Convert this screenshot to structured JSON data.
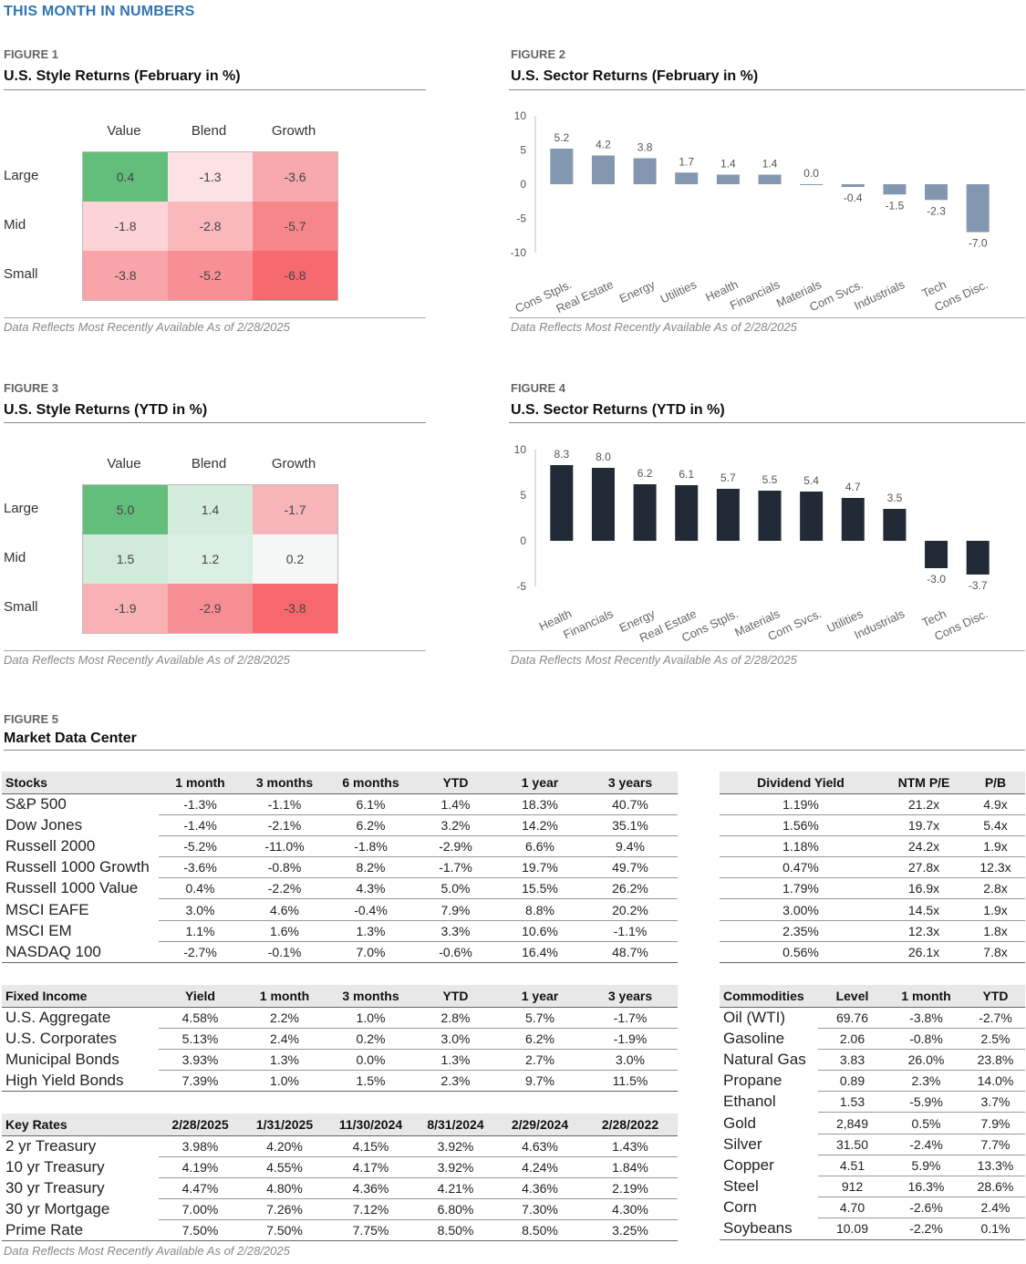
{
  "page_title": "THIS MONTH IN NUMBERS",
  "note": "Data Reflects Most Recently Available As of 2/28/2025",
  "fig1": {
    "label": "FIGURE 1",
    "title": "U.S. Style Returns (February in %)",
    "columns": [
      "Value",
      "Blend",
      "Growth"
    ],
    "rows": [
      "Large",
      "Mid",
      "Small"
    ],
    "cells": [
      [
        "0.4",
        "-1.3",
        "-3.6"
      ],
      [
        "-1.8",
        "-2.8",
        "-5.7"
      ],
      [
        "-3.8",
        "-5.2",
        "-6.8"
      ]
    ],
    "colors": [
      [
        "#63be7b",
        "#fde2e5",
        "#f8a9ae"
      ],
      [
        "#fcd3d7",
        "#fab8bd",
        "#f7868b"
      ],
      [
        "#f8a4a9",
        "#f78f94",
        "#f6696e"
      ]
    ]
  },
  "fig2": {
    "label": "FIGURE 2",
    "title": "U.S. Sector Returns (February in %)",
    "bar_color": "#8497b0"
  },
  "fig3": {
    "label": "FIGURE 3",
    "title": "U.S. Style Returns (YTD in %)",
    "columns": [
      "Value",
      "Blend",
      "Growth"
    ],
    "rows": [
      "Large",
      "Mid",
      "Small"
    ],
    "cells": [
      [
        "5.0",
        "1.4",
        "-1.7"
      ],
      [
        "1.5",
        "1.2",
        "0.2"
      ],
      [
        "-1.9",
        "-2.9",
        "-3.8"
      ]
    ],
    "colors": [
      [
        "#63be7b",
        "#d4ecdc",
        "#f8b5b9"
      ],
      [
        "#d1ead9",
        "#dbefe2",
        "#f5f8f6"
      ],
      [
        "#f8b2b6",
        "#f68e93",
        "#f6686d"
      ]
    ]
  },
  "fig4": {
    "label": "FIGURE 4",
    "title": "U.S. Sector Returns (YTD in %)",
    "bar_color": "#222a35"
  },
  "chart_data": [
    {
      "type": "bar",
      "title": "U.S. Sector Returns (February in %)",
      "categories": [
        "Cons Stpls.",
        "Real Estate",
        "Energy",
        "Utilities",
        "Health",
        "Financials",
        "Materials",
        "Com Svcs.",
        "Industrials",
        "Tech",
        "Cons Disc."
      ],
      "values": [
        5.2,
        4.2,
        3.8,
        1.7,
        1.4,
        1.4,
        0.0,
        -0.4,
        -1.5,
        -2.3,
        -7.0
      ],
      "labels": [
        "5.2",
        "4.2",
        "3.8",
        "1.7",
        "1.4",
        "1.4",
        "0.0",
        "-0.4",
        "-1.5",
        "-2.3",
        "-7.0"
      ],
      "yticks": [
        "10",
        "5",
        "0",
        "-5",
        "-10"
      ],
      "ylim": [
        -10,
        10
      ]
    },
    {
      "type": "bar",
      "title": "U.S. Sector Returns (YTD in %)",
      "categories": [
        "Health",
        "Financials",
        "Energy",
        "Real Estate",
        "Cons Stpls.",
        "Materials",
        "Com Svcs.",
        "Utilities",
        "Industrials",
        "Tech",
        "Cons Disc."
      ],
      "values": [
        8.3,
        8.0,
        6.2,
        6.1,
        5.7,
        5.5,
        5.4,
        4.7,
        3.5,
        -3.0,
        -3.7
      ],
      "labels": [
        "8.3",
        "8.0",
        "6.2",
        "6.1",
        "5.7",
        "5.5",
        "5.4",
        "4.7",
        "3.5",
        "-3.0",
        "-3.7"
      ],
      "yticks": [
        "10",
        "5",
        "0",
        "-5"
      ],
      "ylim": [
        -5,
        10
      ]
    }
  ],
  "fig5": {
    "label": "FIGURE 5",
    "title": "Market Data Center",
    "stocks": {
      "headers": [
        "Stocks",
        "1 month",
        "3 months",
        "6 months",
        "YTD",
        "1 year",
        "3 years"
      ],
      "rows": [
        [
          "S&P 500",
          "-1.3%",
          "-1.1%",
          "6.1%",
          "1.4%",
          "18.3%",
          "40.7%"
        ],
        [
          "Dow Jones",
          "-1.4%",
          "-2.1%",
          "6.2%",
          "3.2%",
          "14.2%",
          "35.1%"
        ],
        [
          "Russell 2000",
          "-5.2%",
          "-11.0%",
          "-1.8%",
          "-2.9%",
          "6.6%",
          "9.4%"
        ],
        [
          "Russell 1000 Growth",
          "-3.6%",
          "-0.8%",
          "8.2%",
          "-1.7%",
          "19.7%",
          "49.7%"
        ],
        [
          "Russell 1000 Value",
          "0.4%",
          "-2.2%",
          "4.3%",
          "5.0%",
          "15.5%",
          "26.2%"
        ],
        [
          "MSCI EAFE",
          "3.0%",
          "4.6%",
          "-0.4%",
          "7.9%",
          "8.8%",
          "20.2%"
        ],
        [
          "MSCI EM",
          "1.1%",
          "1.6%",
          "1.3%",
          "3.3%",
          "10.6%",
          "-1.1%"
        ],
        [
          "NASDAQ 100",
          "-2.7%",
          "-0.1%",
          "7.0%",
          "-0.6%",
          "16.4%",
          "48.7%"
        ]
      ]
    },
    "valuation": {
      "headers": [
        "Dividend Yield",
        "NTM P/E",
        "P/B"
      ],
      "rows": [
        [
          "1.19%",
          "21.2x",
          "4.9x"
        ],
        [
          "1.56%",
          "19.7x",
          "5.4x"
        ],
        [
          "1.18%",
          "24.2x",
          "1.9x"
        ],
        [
          "0.47%",
          "27.8x",
          "12.3x"
        ],
        [
          "1.79%",
          "16.9x",
          "2.8x"
        ],
        [
          "3.00%",
          "14.5x",
          "1.9x"
        ],
        [
          "2.35%",
          "12.3x",
          "1.8x"
        ],
        [
          "0.56%",
          "26.1x",
          "7.8x"
        ]
      ]
    },
    "fixed_income": {
      "headers": [
        "Fixed Income",
        "Yield",
        "1 month",
        "3 months",
        "YTD",
        "1 year",
        "3 years"
      ],
      "rows": [
        [
          "U.S. Aggregate",
          "4.58%",
          "2.2%",
          "1.0%",
          "2.8%",
          "5.7%",
          "-1.7%"
        ],
        [
          "U.S. Corporates",
          "5.13%",
          "2.4%",
          "0.2%",
          "3.0%",
          "6.2%",
          "-1.9%"
        ],
        [
          "Municipal Bonds",
          "3.93%",
          "1.3%",
          "0.0%",
          "1.3%",
          "2.7%",
          "3.0%"
        ],
        [
          "High Yield Bonds",
          "7.39%",
          "1.0%",
          "1.5%",
          "2.3%",
          "9.7%",
          "11.5%"
        ]
      ]
    },
    "key_rates": {
      "headers": [
        "Key Rates",
        "2/28/2025",
        "1/31/2025",
        "11/30/2024",
        "8/31/2024",
        "2/29/2024",
        "2/28/2022"
      ],
      "rows": [
        [
          "2 yr Treasury",
          "3.98%",
          "4.20%",
          "4.15%",
          "3.92%",
          "4.63%",
          "1.43%"
        ],
        [
          "10 yr Treasury",
          "4.19%",
          "4.55%",
          "4.17%",
          "3.92%",
          "4.24%",
          "1.84%"
        ],
        [
          "30 yr Treasury",
          "4.47%",
          "4.80%",
          "4.36%",
          "4.21%",
          "4.36%",
          "2.19%"
        ],
        [
          "30 yr Mortgage",
          "7.00%",
          "7.26%",
          "7.12%",
          "6.80%",
          "7.30%",
          "4.30%"
        ],
        [
          "Prime Rate",
          "7.50%",
          "7.50%",
          "7.75%",
          "8.50%",
          "8.50%",
          "3.25%"
        ]
      ]
    },
    "commodities": {
      "headers": [
        "Commodities",
        "Level",
        "1 month",
        "YTD"
      ],
      "rows": [
        [
          "Oil (WTI)",
          "69.76",
          "-3.8%",
          "-2.7%"
        ],
        [
          "Gasoline",
          "2.06",
          "-0.8%",
          "2.5%"
        ],
        [
          "Natural Gas",
          "3.83",
          "26.0%",
          "23.8%"
        ],
        [
          "Propane",
          "0.89",
          "2.3%",
          "14.0%"
        ],
        [
          "Ethanol",
          "1.53",
          "-5.9%",
          "3.7%"
        ],
        [
          "Gold",
          "2,849",
          "0.5%",
          "7.9%"
        ],
        [
          "Silver",
          "31.50",
          "-2.4%",
          "7.7%"
        ],
        [
          "Copper",
          "4.51",
          "5.9%",
          "13.3%"
        ],
        [
          "Steel",
          "912",
          "16.3%",
          "28.6%"
        ],
        [
          "Corn",
          "4.70",
          "-2.6%",
          "2.4%"
        ],
        [
          "Soybeans",
          "10.09",
          "-2.2%",
          "0.1%"
        ]
      ]
    }
  }
}
